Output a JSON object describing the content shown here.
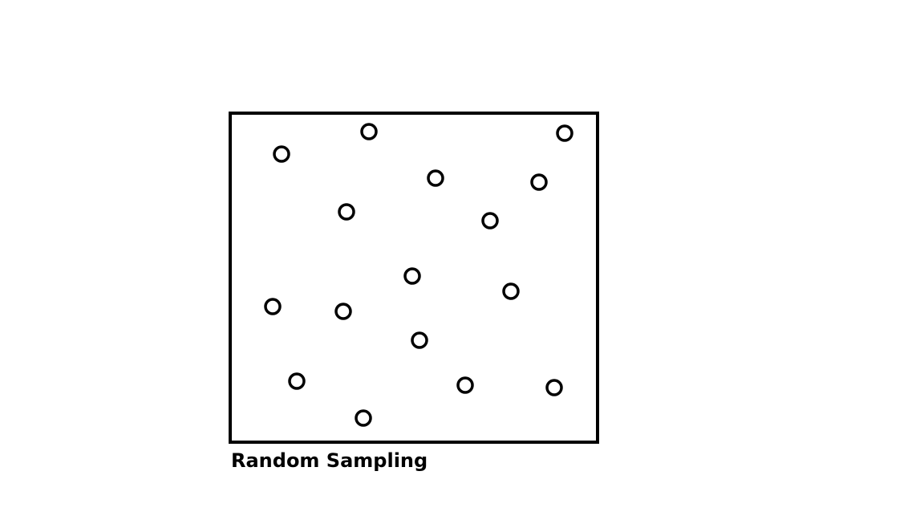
{
  "diagram": {
    "caption": "Random Sampling",
    "stroke_color": "#000000",
    "background_color": "#ffffff",
    "element_count": 17
  }
}
